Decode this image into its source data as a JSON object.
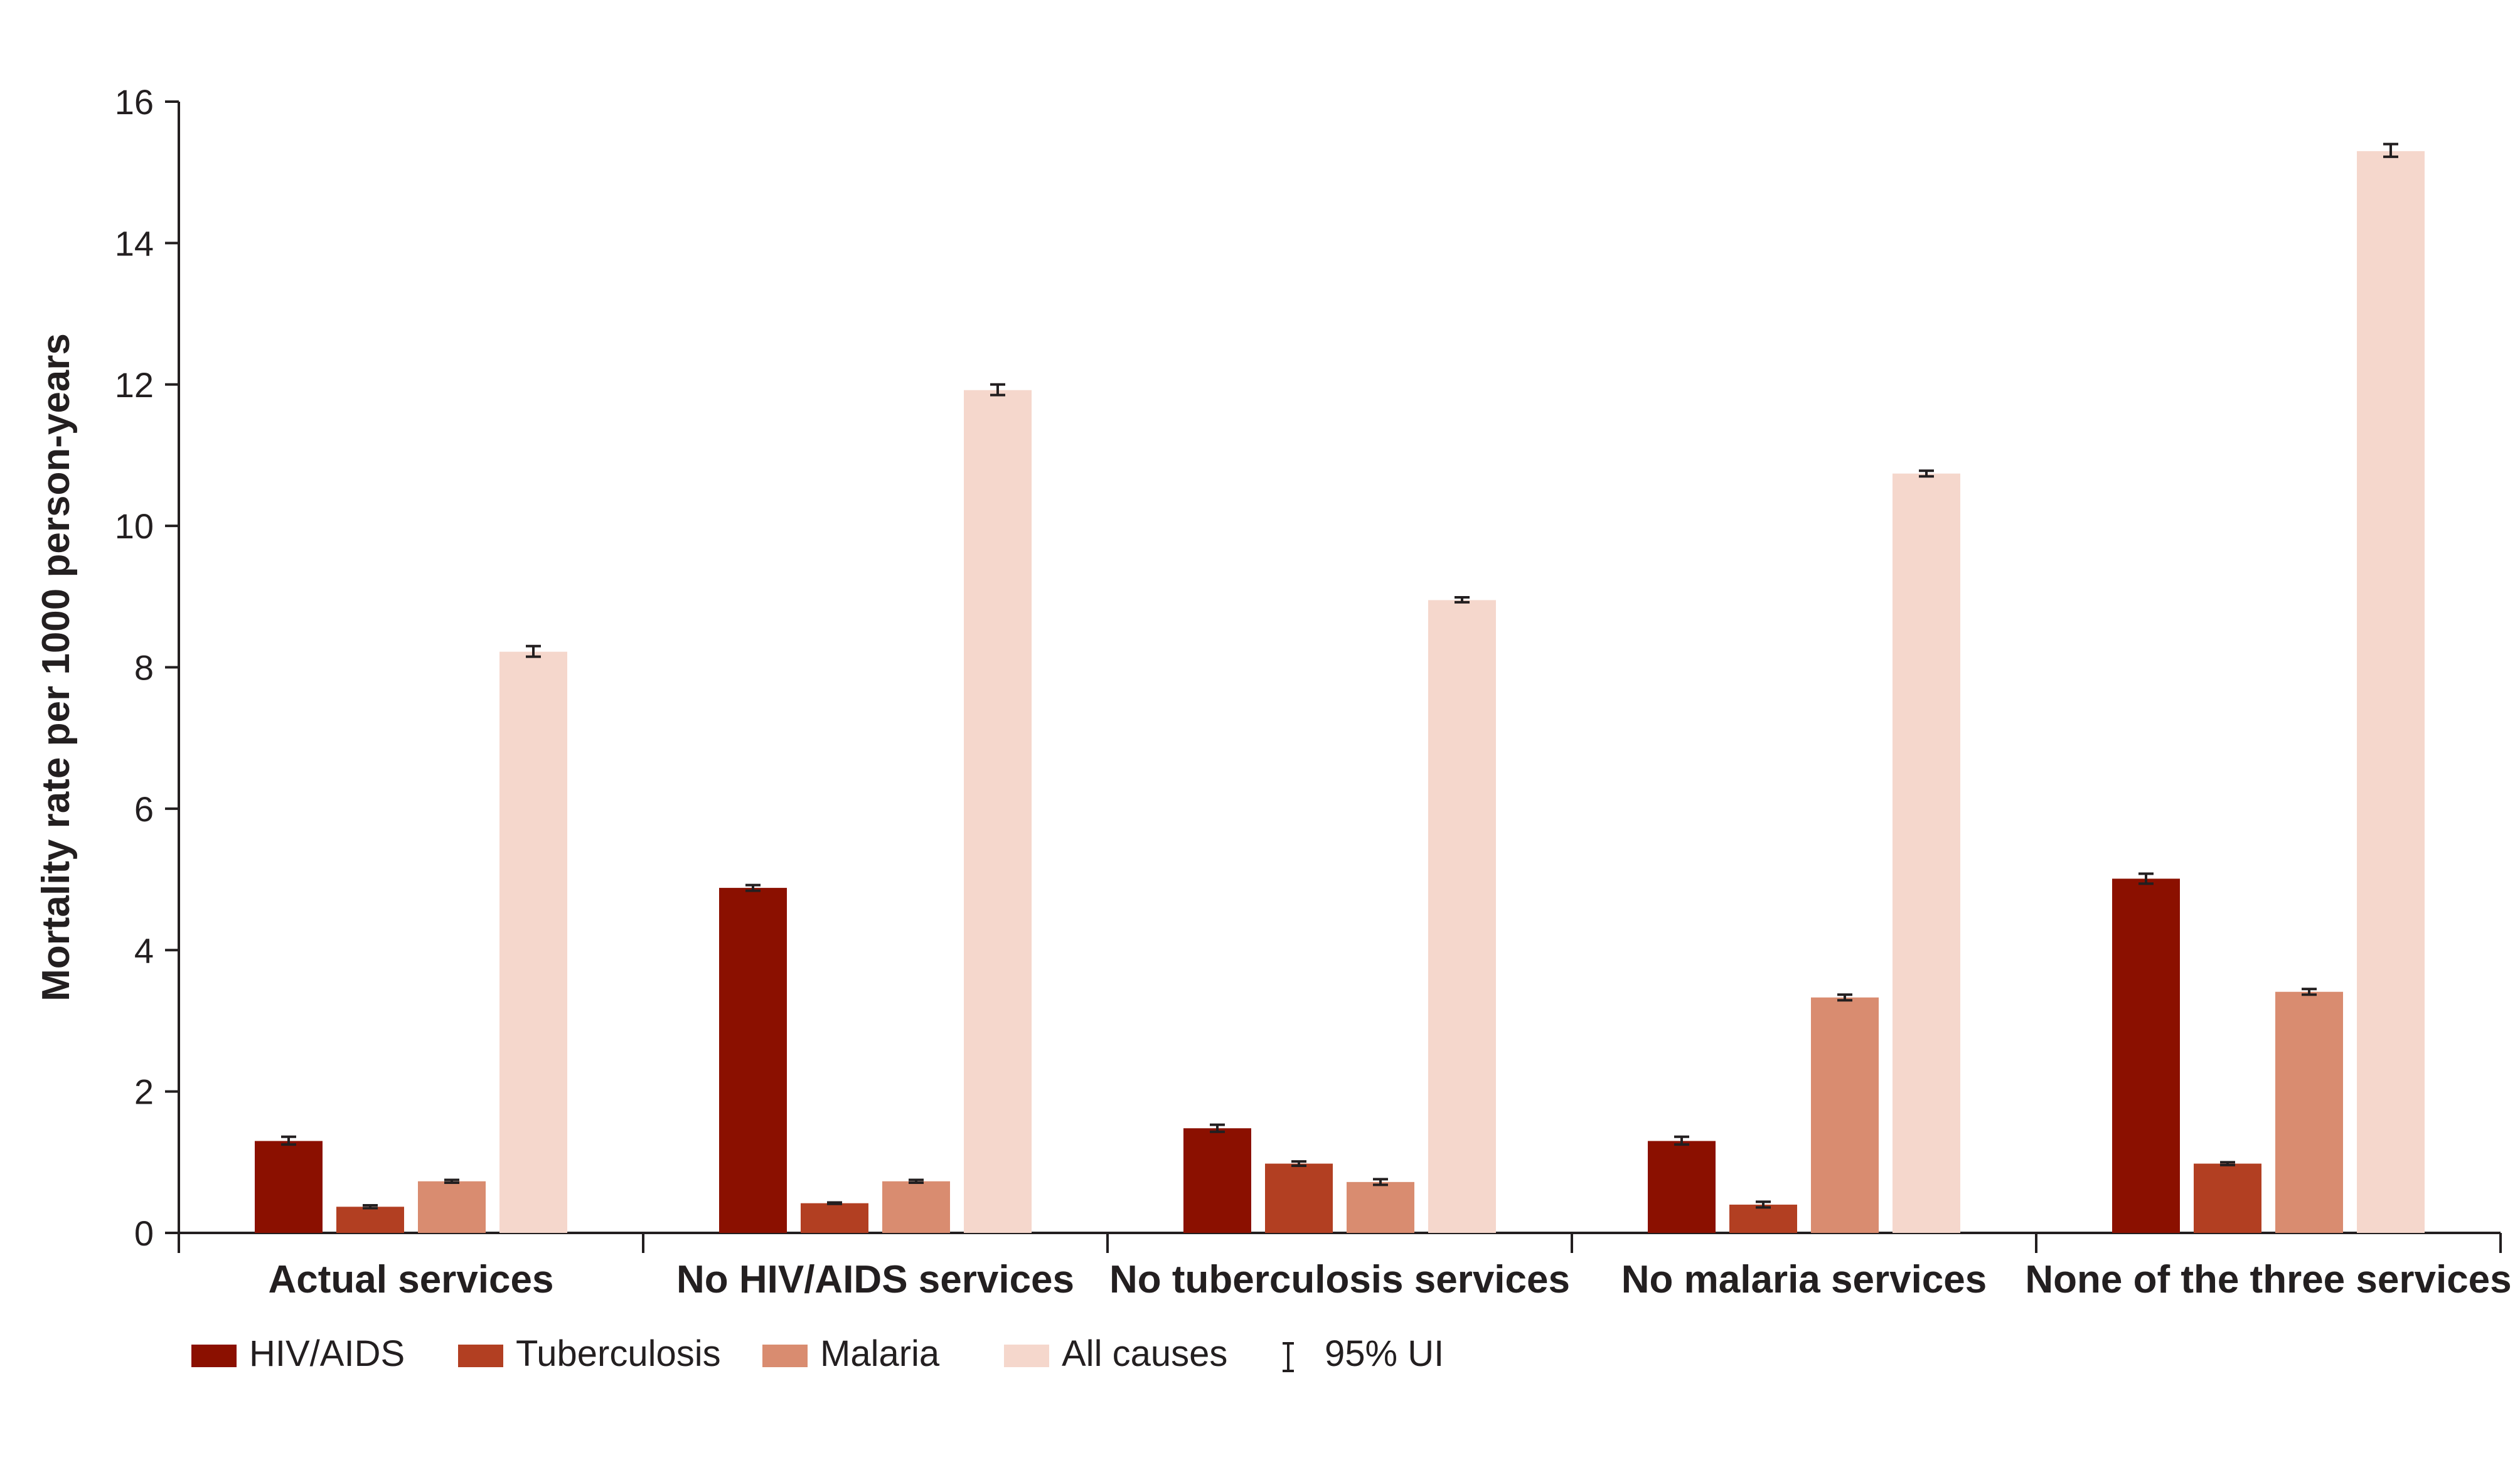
{
  "chart_data": {
    "type": "bar",
    "title": "",
    "xlabel": "",
    "ylabel": "Mortality rate per 1000 person-years",
    "ylim": [
      0,
      16
    ],
    "yticks": [
      0,
      2,
      4,
      6,
      8,
      10,
      12,
      14,
      16
    ],
    "grid": false,
    "legend_position": "bottom-left",
    "categories": [
      "Actual services",
      "No HIV/AIDS services",
      "No tuberculosis services",
      "No malaria services",
      "None of the three services"
    ],
    "series": [
      {
        "name": "HIV/AIDS",
        "color": "#8b1000",
        "values": [
          1.3,
          4.88,
          1.48,
          1.3,
          5.01
        ],
        "ui_low": [
          1.25,
          4.84,
          1.43,
          1.25,
          4.94
        ],
        "ui_high": [
          1.36,
          4.92,
          1.53,
          1.36,
          5.08
        ]
      },
      {
        "name": "Tuberculosis",
        "color": "#b23f22",
        "values": [
          0.37,
          0.42,
          0.98,
          0.4,
          0.98
        ],
        "ui_low": [
          0.35,
          0.41,
          0.95,
          0.36,
          0.96
        ],
        "ui_high": [
          0.39,
          0.43,
          1.01,
          0.44,
          1.0
        ]
      },
      {
        "name": "Malaria",
        "color": "#d98c70",
        "values": [
          0.73,
          0.73,
          0.72,
          3.33,
          3.41
        ],
        "ui_low": [
          0.71,
          0.71,
          0.68,
          3.29,
          3.37
        ],
        "ui_high": [
          0.75,
          0.75,
          0.76,
          3.37,
          3.45
        ]
      },
      {
        "name": "All causes",
        "color": "#f5d7cc",
        "values": [
          8.22,
          11.92,
          8.95,
          10.74,
          15.3
        ],
        "ui_low": [
          8.15,
          11.85,
          8.92,
          10.7,
          15.22
        ],
        "ui_high": [
          8.3,
          12.0,
          8.99,
          10.78,
          15.4
        ]
      }
    ],
    "legend_extra": "95% UI"
  }
}
